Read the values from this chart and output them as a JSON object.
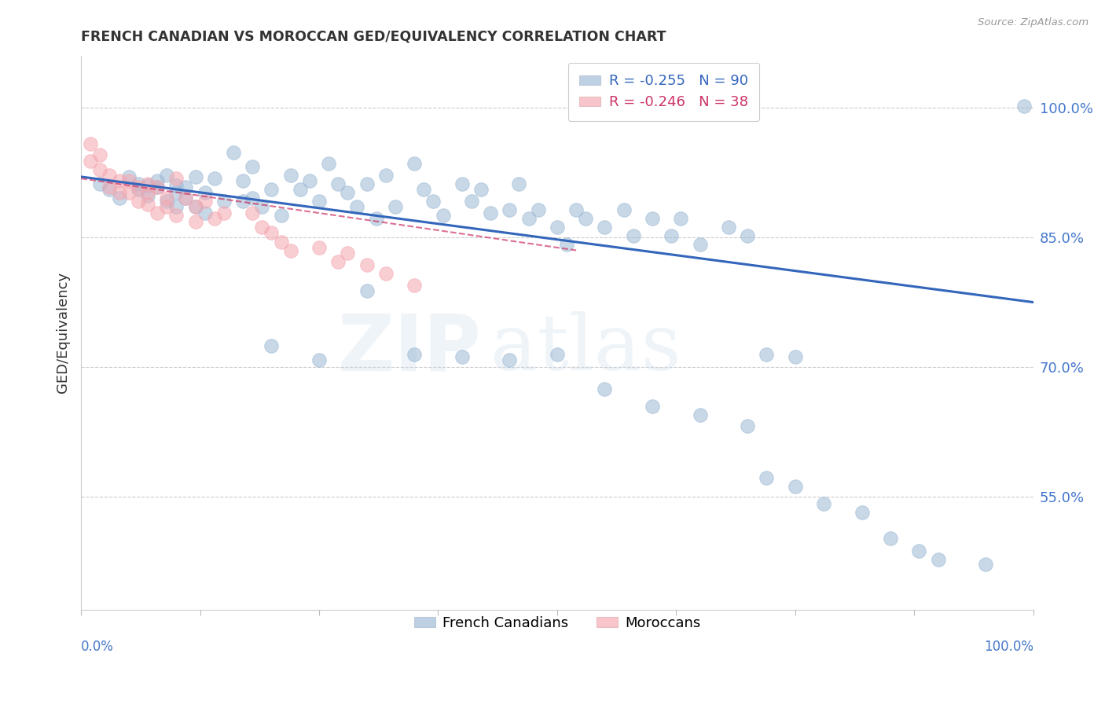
{
  "title": "FRENCH CANADIAN VS MOROCCAN GED/EQUIVALENCY CORRELATION CHART",
  "source": "Source: ZipAtlas.com",
  "ylabel": "GED/Equivalency",
  "watermark": "ZIPatlas",
  "legend_blue_r": "R = -0.255",
  "legend_blue_n": "N = 90",
  "legend_pink_r": "R = -0.246",
  "legend_pink_n": "N = 38",
  "ytick_labels": [
    "100.0%",
    "85.0%",
    "70.0%",
    "55.0%"
  ],
  "ytick_values": [
    1.0,
    0.85,
    0.7,
    0.55
  ],
  "xlim": [
    0.0,
    1.0
  ],
  "ylim": [
    0.42,
    1.06
  ],
  "blue_color": "#9BB8D4",
  "pink_color": "#F4A7B0",
  "blue_line_color": "#3366BB",
  "pink_line_color": "#CC3366",
  "axis_label_color": "#4477CC",
  "grid_color": "#CCCCCC",
  "title_color": "#333333",
  "background_color": "#FFFFFF",
  "blue_scatter_x": [
    0.02,
    0.03,
    0.04,
    0.05,
    0.06,
    0.06,
    0.07,
    0.07,
    0.08,
    0.08,
    0.09,
    0.09,
    0.1,
    0.1,
    0.1,
    0.11,
    0.11,
    0.12,
    0.12,
    0.13,
    0.13,
    0.14,
    0.15,
    0.16,
    0.17,
    0.17,
    0.18,
    0.18,
    0.19,
    0.2,
    0.21,
    0.22,
    0.23,
    0.24,
    0.25,
    0.26,
    0.27,
    0.28,
    0.29,
    0.3,
    0.31,
    0.32,
    0.33,
    0.35,
    0.36,
    0.37,
    0.38,
    0.4,
    0.41,
    0.42,
    0.43,
    0.45,
    0.46,
    0.47,
    0.48,
    0.5,
    0.51,
    0.52,
    0.53,
    0.55,
    0.57,
    0.58,
    0.6,
    0.62,
    0.63,
    0.65,
    0.68,
    0.7,
    0.72,
    0.75,
    0.2,
    0.25,
    0.3,
    0.35,
    0.4,
    0.45,
    0.5,
    0.55,
    0.6,
    0.65,
    0.7,
    0.72,
    0.75,
    0.78,
    0.82,
    0.85,
    0.88,
    0.9,
    0.95,
    0.99
  ],
  "blue_scatter_y": [
    0.912,
    0.905,
    0.895,
    0.92,
    0.912,
    0.905,
    0.91,
    0.898,
    0.908,
    0.915,
    0.892,
    0.922,
    0.91,
    0.885,
    0.902,
    0.895,
    0.908,
    0.885,
    0.92,
    0.902,
    0.878,
    0.918,
    0.892,
    0.948,
    0.915,
    0.892,
    0.932,
    0.895,
    0.885,
    0.905,
    0.875,
    0.922,
    0.905,
    0.915,
    0.892,
    0.935,
    0.912,
    0.902,
    0.885,
    0.912,
    0.872,
    0.922,
    0.885,
    0.935,
    0.905,
    0.892,
    0.875,
    0.912,
    0.892,
    0.905,
    0.878,
    0.882,
    0.912,
    0.872,
    0.882,
    0.862,
    0.842,
    0.882,
    0.872,
    0.862,
    0.882,
    0.852,
    0.872,
    0.852,
    0.872,
    0.842,
    0.862,
    0.852,
    0.715,
    0.712,
    0.725,
    0.708,
    0.788,
    0.715,
    0.712,
    0.708,
    0.715,
    0.675,
    0.655,
    0.645,
    0.632,
    0.572,
    0.562,
    0.542,
    0.532,
    0.502,
    0.488,
    0.478,
    0.472,
    1.002
  ],
  "pink_scatter_x": [
    0.01,
    0.01,
    0.02,
    0.02,
    0.03,
    0.03,
    0.04,
    0.04,
    0.05,
    0.05,
    0.06,
    0.06,
    0.07,
    0.07,
    0.07,
    0.08,
    0.08,
    0.09,
    0.09,
    0.1,
    0.1,
    0.11,
    0.12,
    0.12,
    0.13,
    0.14,
    0.15,
    0.18,
    0.19,
    0.2,
    0.21,
    0.22,
    0.25,
    0.27,
    0.28,
    0.3,
    0.32,
    0.35
  ],
  "pink_scatter_y": [
    0.938,
    0.958,
    0.945,
    0.928,
    0.922,
    0.908,
    0.915,
    0.902,
    0.915,
    0.902,
    0.908,
    0.892,
    0.912,
    0.888,
    0.902,
    0.908,
    0.878,
    0.895,
    0.885,
    0.918,
    0.875,
    0.895,
    0.885,
    0.868,
    0.892,
    0.872,
    0.878,
    0.878,
    0.862,
    0.855,
    0.845,
    0.835,
    0.838,
    0.822,
    0.832,
    0.818,
    0.808,
    0.795
  ],
  "blue_trend_x": [
    0.0,
    1.0
  ],
  "blue_trend_y": [
    0.92,
    0.775
  ],
  "pink_trend_x": [
    0.0,
    0.52
  ],
  "pink_trend_y": [
    0.918,
    0.835
  ],
  "xtick_positions": [
    0.0,
    0.125,
    0.25,
    0.375,
    0.5,
    0.625,
    0.75,
    0.875,
    1.0
  ]
}
